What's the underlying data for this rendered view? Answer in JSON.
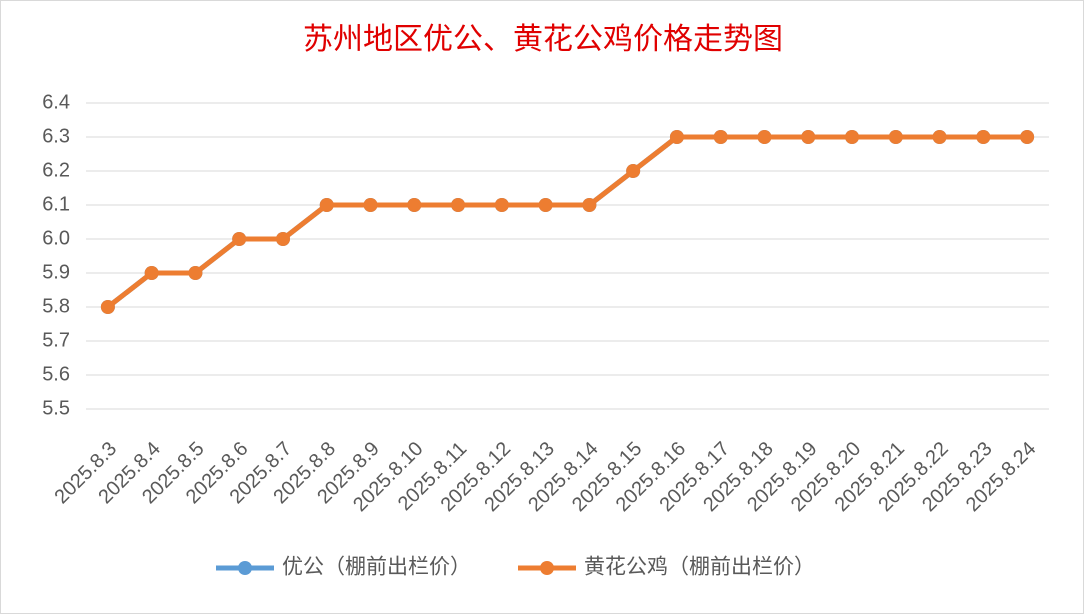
{
  "chart_data": {
    "type": "line",
    "title": "苏州地区优公、黄花公鸡价格走势图",
    "categories": [
      "2025.8.3",
      "2025.8.4",
      "2025.8.5",
      "2025.8.6",
      "2025.8.7",
      "2025.8.8",
      "2025.8.9",
      "2025.8.10",
      "2025.8.11",
      "2025.8.12",
      "2025.8.13",
      "2025.8.14",
      "2025.8.15",
      "2025.8.16",
      "2025.8.17",
      "2025.8.18",
      "2025.8.19",
      "2025.8.20",
      "2025.8.21",
      "2025.8.22",
      "2025.8.23",
      "2025.8.24"
    ],
    "series": [
      {
        "name": "优公（棚前出栏价）",
        "color": "#5b9bd5",
        "values": [
          5.8,
          5.9,
          5.9,
          6.0,
          6.0,
          6.1,
          6.1,
          6.1,
          6.1,
          6.1,
          6.1,
          6.1,
          6.2,
          6.3,
          6.3,
          6.3,
          6.3,
          6.3,
          6.3,
          6.3,
          6.3,
          6.3
        ]
      },
      {
        "name": "黄花公鸡（棚前出栏价）",
        "color": "#ed7d31",
        "values": [
          5.8,
          5.9,
          5.9,
          6.0,
          6.0,
          6.1,
          6.1,
          6.1,
          6.1,
          6.1,
          6.1,
          6.1,
          6.2,
          6.3,
          6.3,
          6.3,
          6.3,
          6.3,
          6.3,
          6.3,
          6.3,
          6.3
        ]
      }
    ],
    "ylim": [
      5.5,
      6.4
    ],
    "yticks": [
      5.5,
      5.6,
      5.7,
      5.8,
      5.9,
      {
        "value": 6,
        "label": "6.0"
      },
      6.1,
      6.2,
      6.3,
      6.4
    ],
    "grid": true,
    "legend": "bottom"
  }
}
